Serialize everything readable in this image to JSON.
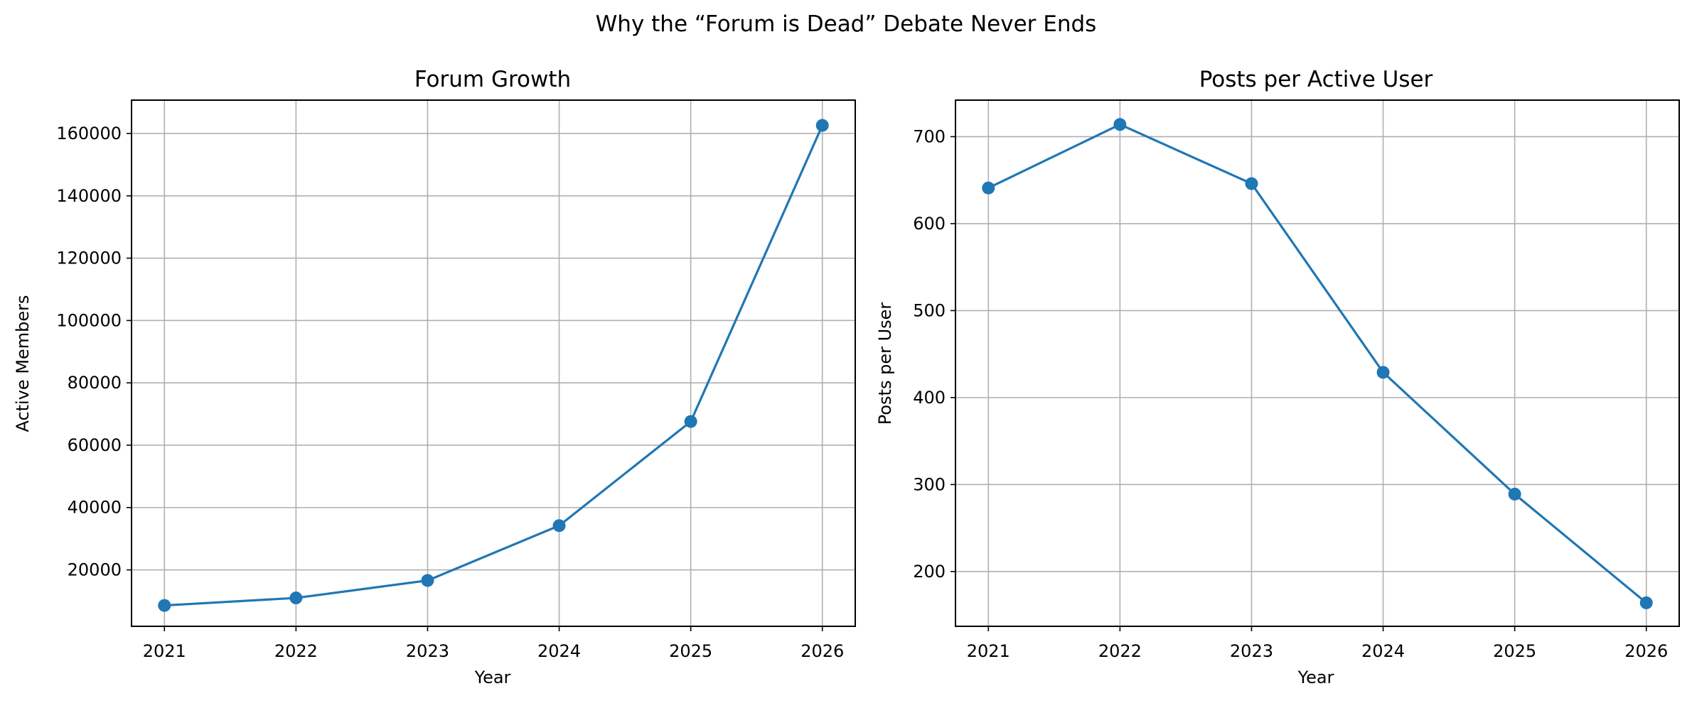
{
  "figure": {
    "suptitle": "Why the “Forum is Dead” Debate Never Ends"
  },
  "chart_data": [
    {
      "type": "line",
      "title": "Forum Growth",
      "xlabel": "Year",
      "ylabel": "Active Members",
      "x": [
        2021,
        2022,
        2023,
        2024,
        2025,
        2026
      ],
      "series": [
        {
          "values": [
            8600,
            11000,
            16600,
            34200,
            67600,
            162600
          ],
          "color": "#1f77b4",
          "marker": "circle"
        }
      ],
      "xlim": [
        2020.75,
        2026.25
      ],
      "ylim": [
        1900,
        170700
      ],
      "xticks": [
        2021,
        2022,
        2023,
        2024,
        2025,
        2026
      ],
      "yticks": [
        20000,
        40000,
        60000,
        80000,
        100000,
        120000,
        140000,
        160000
      ],
      "grid": true,
      "grid_color": "#b0b0b0",
      "legend": "none"
    },
    {
      "type": "line",
      "title": "Posts per Active User",
      "xlabel": "Year",
      "ylabel": "Posts per User",
      "x": [
        2021,
        2022,
        2023,
        2024,
        2025,
        2026
      ],
      "series": [
        {
          "values": [
            641,
            714,
            646,
            429,
            289,
            164
          ],
          "color": "#1f77b4",
          "marker": "circle"
        }
      ],
      "xlim": [
        2020.75,
        2026.25
      ],
      "ylim": [
        137,
        742
      ],
      "xticks": [
        2021,
        2022,
        2023,
        2024,
        2025,
        2026
      ],
      "yticks": [
        200,
        300,
        400,
        500,
        600,
        700
      ],
      "grid": true,
      "grid_color": "#b0b0b0",
      "legend": "none"
    }
  ]
}
